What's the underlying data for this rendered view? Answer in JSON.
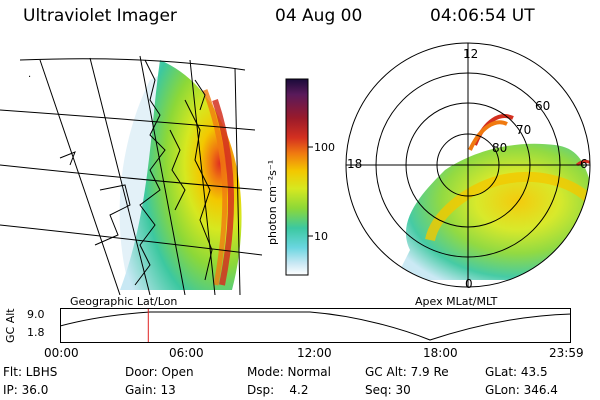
{
  "header": {
    "instrument": "Ultraviolet Imager",
    "date": "04 Aug 00",
    "time": "04:06:54 UT"
  },
  "left_panel": {
    "caption": "Geographic Lat/Lon"
  },
  "right_panel": {
    "caption": "Apex MLat/MLT",
    "mlt_labels": {
      "top": "12",
      "left": "18",
      "right": "6",
      "bottom": "0"
    },
    "lat_labels": [
      "60",
      "70",
      "80"
    ]
  },
  "colorbar": {
    "unit_label": "photon cm⁻²s⁻¹",
    "ticks": [
      "100",
      "10"
    ],
    "colors": [
      "#1a0a3a",
      "#5a1a5a",
      "#9a1a2a",
      "#d43020",
      "#f07a10",
      "#f3c800",
      "#d6e820",
      "#8cd838",
      "#3cc8a0",
      "#6ad6e0",
      "#c8e8f4",
      "#ffffff"
    ]
  },
  "altitude_plot": {
    "y_label": "GC Alt",
    "y_ticks": [
      "9.0",
      "1.8"
    ],
    "x_ticks": [
      "00:00",
      "06:00",
      "12:00",
      "18:00",
      "23:59"
    ],
    "marker_time_fraction": 0.1715
  },
  "info": {
    "filter": "Flt: LBHS",
    "door": "Door: Open",
    "mode": "Mode: Normal",
    "gc_alt": "GC Alt: 7.9 Re",
    "glat": "GLat:  43.5",
    "ip": "IP: 36.0",
    "gain": "Gain: 13",
    "dsp": "Dsp:    4.2",
    "seq": "Seq: 30",
    "glon": "GLon: 346.4"
  }
}
